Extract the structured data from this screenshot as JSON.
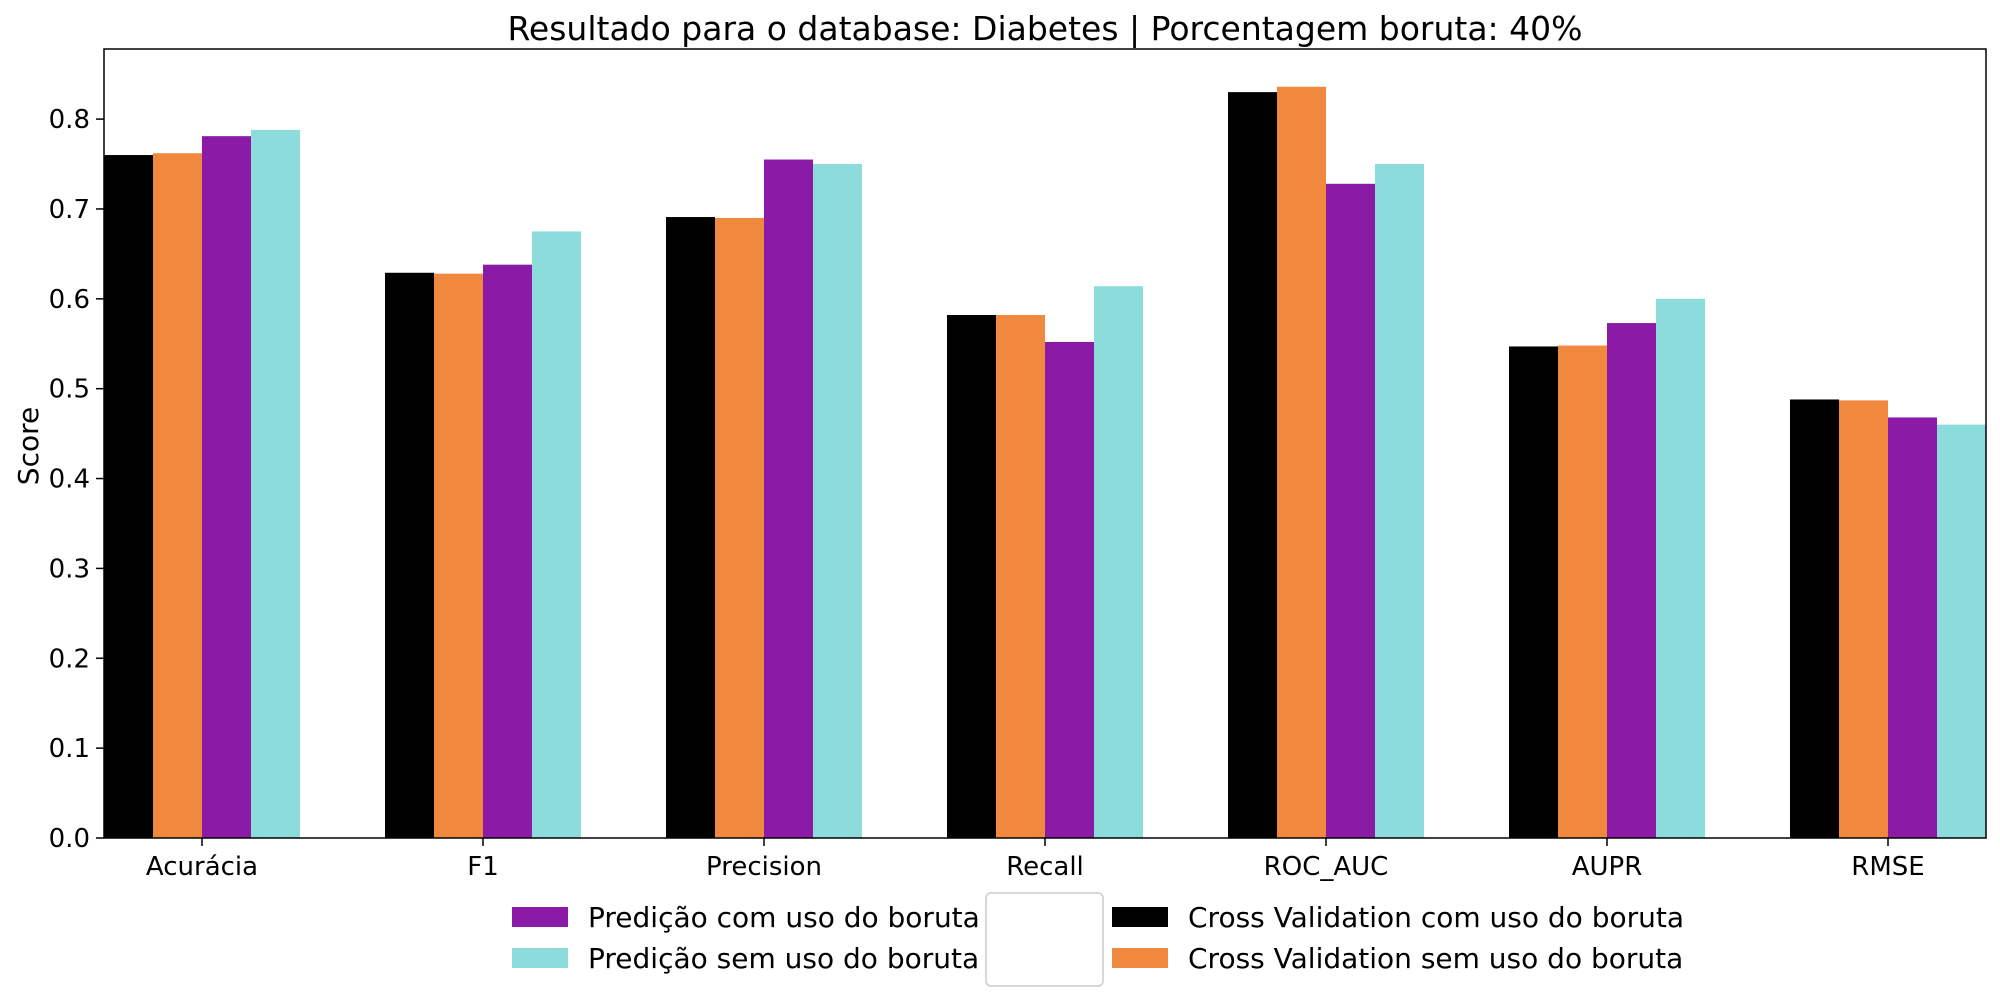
{
  "chart_data": {
    "type": "bar",
    "title": "Resultado para o database: Diabetes | Porcentagem boruta: 40%",
    "xlabel": "",
    "ylabel": "Score",
    "ylim": [
      0,
      0.878
    ],
    "yticks": [
      0.0,
      0.1,
      0.2,
      0.3,
      0.4,
      0.5,
      0.6,
      0.7,
      0.8
    ],
    "categories": [
      "Acurácia",
      "F1",
      "Precision",
      "Recall",
      "ROC_AUC",
      "AUPR",
      "RMSE"
    ],
    "series": [
      {
        "name": "Cross Validation com uso do boruta",
        "color": "#000000",
        "values": [
          0.76,
          0.629,
          0.691,
          0.582,
          0.83,
          0.547,
          0.488
        ]
      },
      {
        "name": "Cross Validation sem uso do boruta",
        "color": "#f0883e",
        "values": [
          0.762,
          0.628,
          0.69,
          0.582,
          0.836,
          0.548,
          0.487
        ]
      },
      {
        "name": "Predição com uso do boruta",
        "color": "#8b1aa6",
        "values": [
          0.781,
          0.638,
          0.755,
          0.552,
          0.728,
          0.573,
          0.468
        ]
      },
      {
        "name": "Predição sem uso do boruta",
        "color": "#8cdcdc",
        "values": [
          0.788,
          0.675,
          0.75,
          0.614,
          0.75,
          0.6,
          0.46
        ]
      }
    ],
    "grid": false,
    "legend": {
      "placement": "bottom-center",
      "left_column": [
        "Predição com uso do boruta",
        "Predição sem uso do boruta"
      ],
      "right_column": [
        "Cross Validation com uso do boruta",
        "Cross Validation sem uso do boruta"
      ]
    }
  }
}
